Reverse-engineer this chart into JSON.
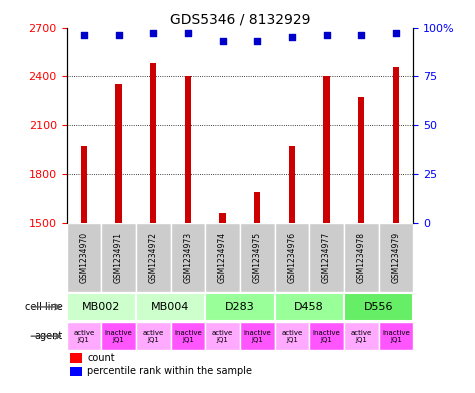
{
  "title": "GDS5346 / 8132929",
  "samples": [
    "GSM1234970",
    "GSM1234971",
    "GSM1234972",
    "GSM1234973",
    "GSM1234974",
    "GSM1234975",
    "GSM1234976",
    "GSM1234977",
    "GSM1234978",
    "GSM1234979"
  ],
  "counts": [
    1970,
    2350,
    2480,
    2400,
    1560,
    1690,
    1970,
    2400,
    2270,
    2460
  ],
  "percentiles": [
    96,
    96,
    97,
    97,
    93,
    93,
    95,
    96,
    96,
    97
  ],
  "cell_lines": [
    {
      "label": "MB002",
      "start": 0,
      "end": 2,
      "color": "#ccffcc"
    },
    {
      "label": "MB004",
      "start": 2,
      "end": 4,
      "color": "#ccffcc"
    },
    {
      "label": "D283",
      "start": 4,
      "end": 6,
      "color": "#99ff99"
    },
    {
      "label": "D458",
      "start": 6,
      "end": 8,
      "color": "#99ff99"
    },
    {
      "label": "D556",
      "start": 8,
      "end": 10,
      "color": "#66ee66"
    }
  ],
  "agents": [
    {
      "label": "active\nJQ1",
      "color": "#ffaaff"
    },
    {
      "label": "inactive\nJQ1",
      "color": "#ff55ff"
    },
    {
      "label": "active\nJQ1",
      "color": "#ffaaff"
    },
    {
      "label": "inactive\nJQ1",
      "color": "#ff55ff"
    },
    {
      "label": "active\nJQ1",
      "color": "#ffaaff"
    },
    {
      "label": "inactive\nJQ1",
      "color": "#ff55ff"
    },
    {
      "label": "active\nJQ1",
      "color": "#ffaaff"
    },
    {
      "label": "inactive\nJQ1",
      "color": "#ff55ff"
    },
    {
      "label": "active\nJQ1",
      "color": "#ffaaff"
    },
    {
      "label": "inactive\nJQ1",
      "color": "#ff55ff"
    }
  ],
  "ylim_left": [
    1500,
    2700
  ],
  "yticks_left": [
    1500,
    1800,
    2100,
    2400,
    2700
  ],
  "ylim_right": [
    0,
    100
  ],
  "yticks_right": [
    0,
    25,
    50,
    75,
    100
  ],
  "bar_color": "#cc0000",
  "scatter_color": "#0000cc",
  "bar_width": 0.18,
  "sample_box_color": "#cccccc",
  "sample_box_edgecolor": "#999999"
}
